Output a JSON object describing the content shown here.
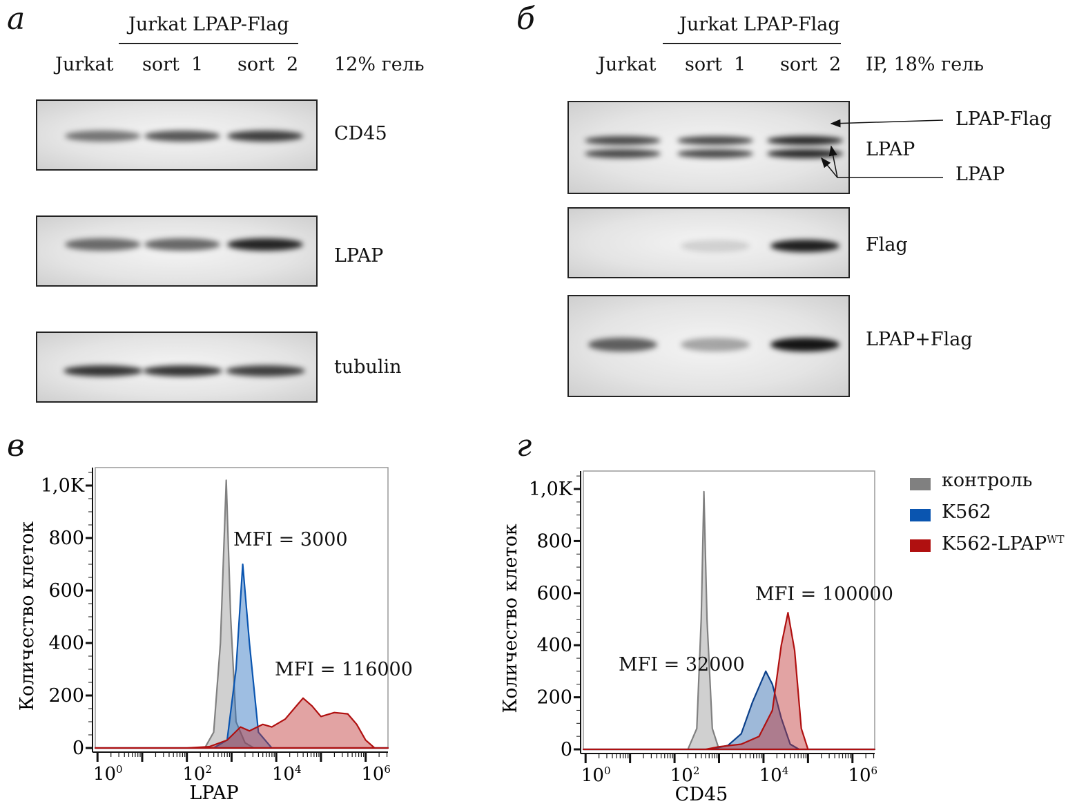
{
  "panels": {
    "a": "а",
    "b": "б",
    "c": "в",
    "d": "г"
  },
  "blot_a": {
    "group_label": "Jurkat LPAP-Flag",
    "lanes": [
      "Jurkat",
      "sort  1",
      "sort  2"
    ],
    "gel": "12% гель",
    "rows": [
      {
        "label": "CD45",
        "intensity": [
          0.55,
          0.7,
          0.8
        ]
      },
      {
        "label": "LPAP",
        "intensity": [
          0.6,
          0.62,
          0.92
        ]
      },
      {
        "label": "tubulin",
        "intensity": [
          0.85,
          0.85,
          0.8
        ]
      }
    ]
  },
  "blot_b": {
    "group_label": "Jurkat LPAP-Flag",
    "lanes": [
      "Jurkat",
      "sort  1",
      "sort  2"
    ],
    "gel": "IP, 18% гель",
    "rows": [
      {
        "label": "LPAP",
        "intensity": [
          0.75,
          0.75,
          0.9
        ]
      },
      {
        "label": "Flag",
        "intensity": [
          0.0,
          0.15,
          0.95
        ]
      },
      {
        "label": "LPAP+Flag",
        "intensity": [
          0.65,
          0.35,
          1.0
        ]
      }
    ],
    "annotations": [
      "LPAP-Flag",
      "LPAP"
    ]
  },
  "legend": [
    {
      "label": "контроль",
      "color": "#808080"
    },
    {
      "label": "K562",
      "color": "#0a55b0"
    },
    {
      "label": "K562-LPAP",
      "sup": "WT",
      "color": "#b01010"
    }
  ],
  "chart_data": [
    {
      "type": "area",
      "xlabel": "LPAP",
      "ylabel": "Количество клеток",
      "xscale": "log10",
      "xlim": [
        -0.05,
        6.5
      ],
      "ylim": [
        0,
        1060
      ],
      "yticks": [
        "0",
        "200",
        "400",
        "600",
        "800",
        "1,0K"
      ],
      "ytick_values": [
        0,
        200,
        400,
        600,
        800,
        1000
      ],
      "xticks": [
        "0",
        "2",
        "4",
        "6"
      ],
      "annotations": [
        "MFI = 3000",
        "MFI = 116000"
      ],
      "series": [
        {
          "name": "контроль",
          "color": "#808080",
          "fill": "rgba(150,150,150,0.45)",
          "points": [
            [
              2.4,
              0
            ],
            [
              2.6,
              60
            ],
            [
              2.75,
              400
            ],
            [
              2.88,
              1020
            ],
            [
              2.98,
              500
            ],
            [
              3.1,
              100
            ],
            [
              3.3,
              20
            ],
            [
              3.5,
              0
            ]
          ]
        },
        {
          "name": "K562",
          "color": "#0a55b0",
          "fill": "rgba(40,110,190,0.45)",
          "points": [
            [
              2.6,
              0
            ],
            [
              2.9,
              30
            ],
            [
              3.1,
              300
            ],
            [
              3.25,
              700
            ],
            [
              3.4,
              400
            ],
            [
              3.6,
              60
            ],
            [
              3.9,
              0
            ]
          ]
        },
        {
          "name": "K562-LPAP WT",
          "color": "#b01010",
          "fill": "rgba(190,50,50,0.45)",
          "points": [
            [
              2.0,
              0
            ],
            [
              2.5,
              5
            ],
            [
              2.9,
              30
            ],
            [
              3.2,
              80
            ],
            [
              3.4,
              65
            ],
            [
              3.7,
              90
            ],
            [
              3.9,
              80
            ],
            [
              4.2,
              110
            ],
            [
              4.5,
              170
            ],
            [
              4.6,
              190
            ],
            [
              4.8,
              160
            ],
            [
              5.0,
              120
            ],
            [
              5.3,
              135
            ],
            [
              5.6,
              130
            ],
            [
              5.8,
              90
            ],
            [
              6.0,
              30
            ],
            [
              6.2,
              0
            ]
          ]
        }
      ]
    },
    {
      "type": "area",
      "xlabel": "CD45",
      "ylabel": "Количество клеток",
      "xscale": "log10",
      "xlim": [
        -0.05,
        6.5
      ],
      "ylim": [
        0,
        1050
      ],
      "yticks": [
        "0",
        "200",
        "400",
        "600",
        "800",
        "1,0K"
      ],
      "ytick_values": [
        0,
        200,
        400,
        600,
        800,
        1000
      ],
      "xticks": [
        "0",
        "2",
        "4",
        "6"
      ],
      "annotations": [
        "MFI = 32000",
        "MFI = 100000"
      ],
      "series": [
        {
          "name": "контроль",
          "color": "#808080",
          "fill": "rgba(150,150,150,0.45)",
          "points": [
            [
              2.3,
              0
            ],
            [
              2.5,
              80
            ],
            [
              2.6,
              500
            ],
            [
              2.66,
              990
            ],
            [
              2.73,
              500
            ],
            [
              2.85,
              80
            ],
            [
              3.0,
              0
            ]
          ]
        },
        {
          "name": "K562",
          "color": "#0a3f8a",
          "fill": "rgba(40,100,170,0.45)",
          "points": [
            [
              2.8,
              0
            ],
            [
              3.2,
              15
            ],
            [
              3.5,
              60
            ],
            [
              3.75,
              180
            ],
            [
              3.9,
              240
            ],
            [
              4.05,
              300
            ],
            [
              4.2,
              250
            ],
            [
              4.4,
              120
            ],
            [
              4.6,
              20
            ],
            [
              4.8,
              0
            ]
          ]
        },
        {
          "name": "K562-LPAP WT",
          "color": "#b01010",
          "fill": "rgba(190,50,50,0.45)",
          "points": [
            [
              2.7,
              0
            ],
            [
              3.0,
              10
            ],
            [
              3.5,
              20
            ],
            [
              3.9,
              50
            ],
            [
              4.2,
              150
            ],
            [
              4.4,
              400
            ],
            [
              4.55,
              525
            ],
            [
              4.7,
              380
            ],
            [
              4.85,
              80
            ],
            [
              5.0,
              0
            ]
          ]
        }
      ]
    }
  ]
}
